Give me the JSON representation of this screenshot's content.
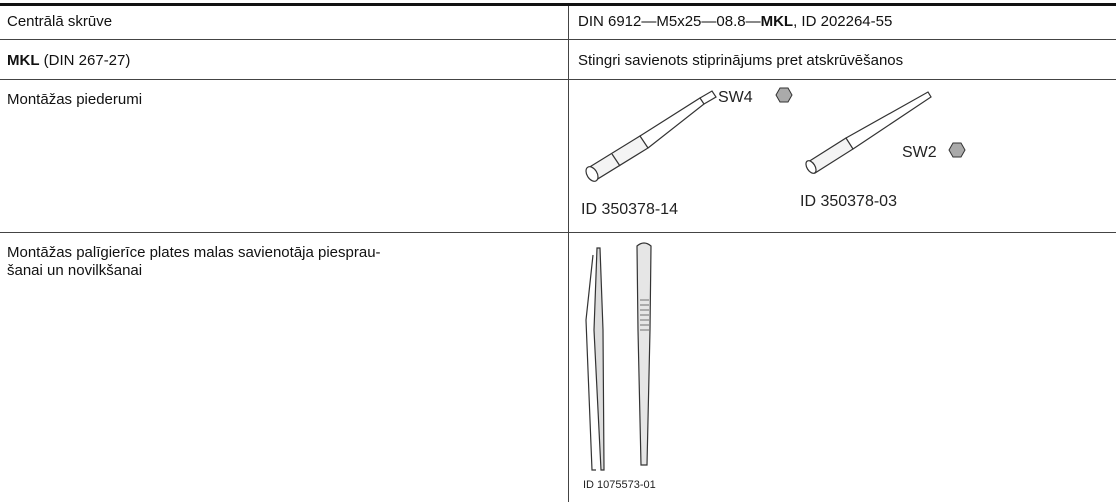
{
  "table": {
    "rows": [
      {
        "left": [
          "Centrālā skrūve"
        ],
        "right": [
          "DIN 6912—M5x25—08.8—",
          "MKL",
          ", ID 202264-55"
        ]
      },
      {
        "left": [
          "MKL",
          " (DIN 267-27)"
        ],
        "right": [
          "Stingri savienots stiprinājums pret atskrūvēšanos"
        ]
      },
      {
        "left": [
          "Montāžas piederumi"
        ],
        "figure_labels": [
          "SW4",
          "SW2",
          "ID 350378-14",
          "ID 350378-03"
        ]
      },
      {
        "left": [
          "Montāžas palīgierīce plates malas savienotāja piesprau-",
          "šanai un novilkšanai"
        ],
        "figure_labels": [
          "ID 1075573-01"
        ]
      }
    ]
  }
}
